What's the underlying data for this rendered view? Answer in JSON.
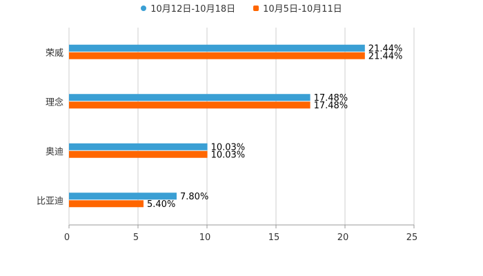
{
  "chart_data": {
    "type": "bar",
    "orientation": "horizontal",
    "categories": [
      "荣威",
      "理念",
      "奥迪",
      "比亚迪"
    ],
    "series": [
      {
        "name": "10月12日-10月18日",
        "color": "#3a9fd4",
        "values": [
          21.44,
          17.48,
          10.03,
          7.8
        ]
      },
      {
        "name": "10月5日-10月11日",
        "color": "#ff6600",
        "values": [
          21.44,
          17.48,
          10.03,
          5.4
        ]
      }
    ],
    "value_labels": [
      [
        "21.44%",
        "17.48%",
        "10.03%",
        "7.80%"
      ],
      [
        "21.44%",
        "17.48%",
        "10.03%",
        "5.40%"
      ]
    ],
    "xlim": [
      0,
      25
    ],
    "xticks": [
      "0",
      "5",
      "10",
      "15",
      "20",
      "25"
    ],
    "xtick_values": [
      0,
      5,
      10,
      15,
      20,
      25
    ],
    "grid": true,
    "legend_position": "top-center"
  }
}
